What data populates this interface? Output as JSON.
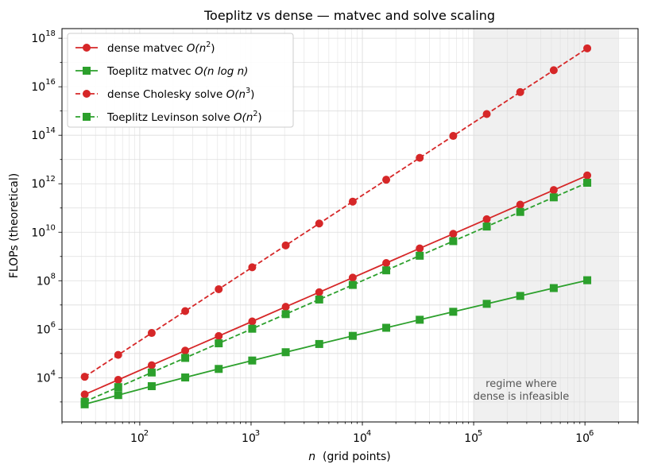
{
  "chart_data": {
    "type": "line",
    "title": "Toeplitz vs dense — matvec and solve scaling",
    "xlabel": "n  (grid points)",
    "ylabel": "FLOPs (theoretical)",
    "xscale": "log",
    "yscale": "log",
    "xlim": [
      20,
      3000000
    ],
    "ylim": [
      150,
      2.5e+18
    ],
    "grid": true,
    "legend_position": "top-left",
    "x_ticks": [
      {
        "value": 100,
        "base": "10",
        "exp": "2"
      },
      {
        "value": 1000,
        "base": "10",
        "exp": "3"
      },
      {
        "value": 10000,
        "base": "10",
        "exp": "4"
      },
      {
        "value": 100000,
        "base": "10",
        "exp": "5"
      },
      {
        "value": 1000000,
        "base": "10",
        "exp": "6"
      }
    ],
    "y_ticks": [
      {
        "value": 10000.0,
        "base": "10",
        "exp": "4"
      },
      {
        "value": 1000000.0,
        "base": "10",
        "exp": "6"
      },
      {
        "value": 100000000.0,
        "base": "10",
        "exp": "8"
      },
      {
        "value": 10000000000.0,
        "base": "10",
        "exp": "10"
      },
      {
        "value": 1000000000000.0,
        "base": "10",
        "exp": "12"
      },
      {
        "value": 100000000000000.0,
        "base": "10",
        "exp": "14"
      },
      {
        "value": 1e+16,
        "base": "10",
        "exp": "16"
      },
      {
        "value": 1e+18,
        "base": "10",
        "exp": "18"
      }
    ],
    "shaded_region": {
      "x_range": [
        100000,
        2000000
      ],
      "label_line1": "regime where",
      "label_line2": "dense is infeasible",
      "color": "#f0f0f0"
    },
    "x": [
      32,
      64,
      128,
      256,
      512,
      1024,
      2048,
      4096,
      8192,
      16384,
      32768,
      65536,
      131072,
      262144,
      524288,
      1048576
    ],
    "series": [
      {
        "name": "dense matvec  O(n²)",
        "legend_prefix": "dense matvec  ",
        "legend_math": "O(n",
        "legend_sup": "2",
        "legend_suffix": ")",
        "color": "#d62728",
        "marker": "circle",
        "linestyle": "solid",
        "values": [
          2048,
          8192,
          32768,
          131072,
          524288,
          2097152,
          8388608,
          33554432,
          134217728,
          536870912,
          2147483648,
          8589934592,
          34359738368,
          137438953472,
          549755813888,
          2199023255552
        ]
      },
      {
        "name": "Toeplitz matvec  O(n log n)",
        "legend_prefix": "Toeplitz matvec  ",
        "legend_math": "O(n log n)",
        "legend_sup": "",
        "legend_suffix": "",
        "color": "#2ca02c",
        "marker": "square",
        "linestyle": "solid",
        "values": [
          800,
          1920,
          4480,
          10240,
          23040,
          51200,
          112640,
          245760,
          532480,
          1146880,
          2457600,
          5242880,
          11141120,
          23592960,
          49807360,
          104857600
        ]
      },
      {
        "name": "dense Cholesky solve  O(n³)",
        "legend_prefix": "dense Cholesky solve  ",
        "legend_math": "O(n",
        "legend_sup": "3",
        "legend_suffix": ")",
        "color": "#d62728",
        "marker": "circle",
        "linestyle": "dashed",
        "values": [
          10923,
          87381,
          699051,
          5592405,
          44739243,
          357913941,
          2863311531,
          22906492245,
          183251937963,
          1466015503701,
          11728124029611,
          93824992236885,
          750599937895083,
          6004799503160661,
          48038396025285290,
          384307168202282325
        ]
      },
      {
        "name": "Toeplitz Levinson solve  O(n²)",
        "legend_prefix": "Toeplitz Levinson solve  ",
        "legend_math": "O(n",
        "legend_sup": "2",
        "legend_suffix": ")",
        "color": "#2ca02c",
        "marker": "square",
        "linestyle": "dashed",
        "values": [
          1024,
          4096,
          16384,
          65536,
          262144,
          1048576,
          4194304,
          16777216,
          67108864,
          268435456,
          1073741824,
          4294967296,
          17179869184,
          68719476736,
          274877906944,
          1099511627776
        ]
      }
    ]
  }
}
